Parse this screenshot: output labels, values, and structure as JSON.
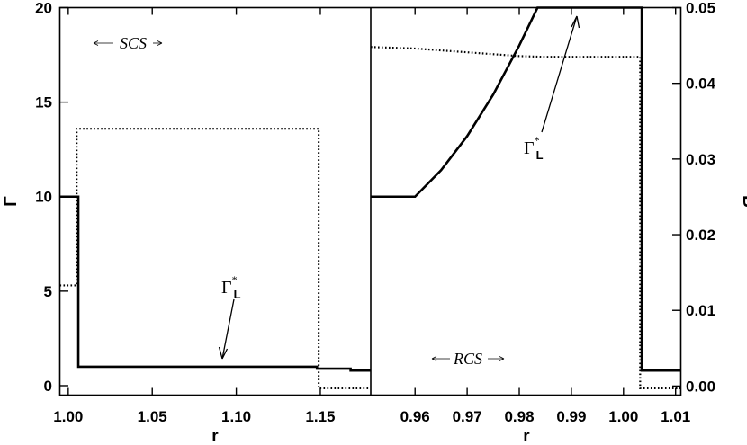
{
  "chart_data": [
    {
      "panel": "left",
      "type": "line",
      "xlabel": "r",
      "ylabel": "Γ",
      "xlim": [
        0.995,
        1.18
      ],
      "ylim": [
        -0.5,
        20
      ],
      "x_ticks": [
        1.0,
        1.05,
        1.1,
        1.15
      ],
      "x_tick_labels": [
        "1.00",
        "1.05",
        "1.10",
        "1.15"
      ],
      "y_ticks": [
        0,
        5,
        10,
        15,
        20
      ],
      "y_tick_labels": [
        "0",
        "5",
        "10",
        "15",
        "20"
      ],
      "series": [
        {
          "style": "solid",
          "axis": "left",
          "points": [
            [
              0.995,
              10.0
            ],
            [
              1.006,
              10.0
            ],
            [
              1.006,
              1.0
            ],
            [
              1.148,
              1.0
            ],
            [
              1.148,
              0.9
            ],
            [
              1.168,
              0.9
            ],
            [
              1.168,
              0.8
            ],
            [
              1.18,
              0.8
            ]
          ]
        },
        {
          "style": "dotted",
          "axis": "right",
          "points": [
            [
              0.995,
              0.0133
            ],
            [
              1.005,
              0.0133
            ],
            [
              1.005,
              0.034
            ],
            [
              1.149,
              0.034
            ],
            [
              1.149,
              -0.0003
            ],
            [
              1.18,
              -0.0003
            ]
          ]
        }
      ],
      "annotations": [
        {
          "label_base": "Γ",
          "label_sup": "*",
          "label_sub": "L",
          "points_to": [
            1.092,
            1.0
          ]
        },
        {
          "label": "SCS"
        }
      ]
    },
    {
      "panel": "right",
      "type": "line",
      "xlabel": "r",
      "ylabel": "B",
      "xlim": [
        0.9515,
        1.011
      ],
      "ylim": [
        -0.0012,
        0.05
      ],
      "x_ticks": [
        0.96,
        0.97,
        0.98,
        0.99,
        1.0,
        1.01
      ],
      "x_tick_labels": [
        "0.96",
        "0.97",
        "0.98",
        "0.99",
        "1.00",
        "1.01"
      ],
      "y_ticks": [
        0.0,
        0.01,
        0.02,
        0.03,
        0.04,
        0.05
      ],
      "y_tick_labels": [
        "0.00",
        "0.01",
        "0.02",
        "0.03",
        "0.04",
        "0.05"
      ],
      "series": [
        {
          "style": "solid",
          "axis": "left",
          "points": [
            [
              0.9515,
              10.0
            ],
            [
              0.96,
              10.0
            ],
            [
              0.965,
              11.4
            ],
            [
              0.97,
              13.2
            ],
            [
              0.975,
              15.4
            ],
            [
              0.98,
              18.0
            ],
            [
              0.9835,
              20.0
            ],
            [
              1.0035,
              20.0
            ],
            [
              1.0035,
              0.8
            ],
            [
              1.011,
              0.8
            ]
          ]
        },
        {
          "style": "dotted",
          "axis": "right",
          "points": [
            [
              0.9515,
              0.0448
            ],
            [
              0.96,
              0.0446
            ],
            [
              0.97,
              0.0441
            ],
            [
              0.98,
              0.0436
            ],
            [
              0.985,
              0.0435
            ],
            [
              0.995,
              0.0435
            ],
            [
              1.0032,
              0.0435
            ],
            [
              1.0032,
              -0.0003
            ],
            [
              1.011,
              -0.0003
            ]
          ]
        }
      ],
      "annotations": [
        {
          "label_base": "Γ",
          "label_sup": "*",
          "label_sub": "L",
          "points_to": [
            0.9915,
            20.0
          ]
        },
        {
          "label": "RCS"
        }
      ]
    }
  ]
}
